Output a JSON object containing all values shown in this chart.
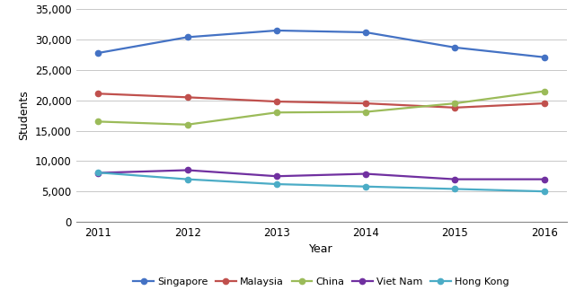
{
  "years": [
    2011,
    2012,
    2013,
    2014,
    2015,
    2016
  ],
  "series": [
    {
      "name": "Singapore",
      "values": [
        27800,
        30400,
        31500,
        31200,
        28700,
        27100
      ],
      "color": "#4472C4",
      "marker": "o"
    },
    {
      "name": "Malaysia",
      "values": [
        21100,
        20500,
        19800,
        19500,
        18800,
        19500
      ],
      "color": "#C0504D",
      "marker": "o"
    },
    {
      "name": "China",
      "values": [
        16500,
        16000,
        18000,
        18100,
        19500,
        21500
      ],
      "color": "#9BBB59",
      "marker": "o"
    },
    {
      "name": "Viet Nam",
      "values": [
        8050,
        8500,
        7500,
        7900,
        7000,
        7000
      ],
      "color": "#7030A0",
      "marker": "o"
    },
    {
      "name": "Hong Kong",
      "values": [
        8100,
        7000,
        6200,
        5800,
        5400,
        5000
      ],
      "color": "#4BACC6",
      "marker": "o"
    }
  ],
  "xlabel": "Year",
  "ylabel": "Students",
  "ylim": [
    0,
    35000
  ],
  "yticks": [
    0,
    5000,
    10000,
    15000,
    20000,
    25000,
    30000,
    35000
  ],
  "xticks": [
    2011,
    2012,
    2013,
    2014,
    2015,
    2016
  ],
  "background_color": "#ffffff",
  "grid_color": "#c8c8c8",
  "line_width": 1.6,
  "marker_size": 4.5
}
